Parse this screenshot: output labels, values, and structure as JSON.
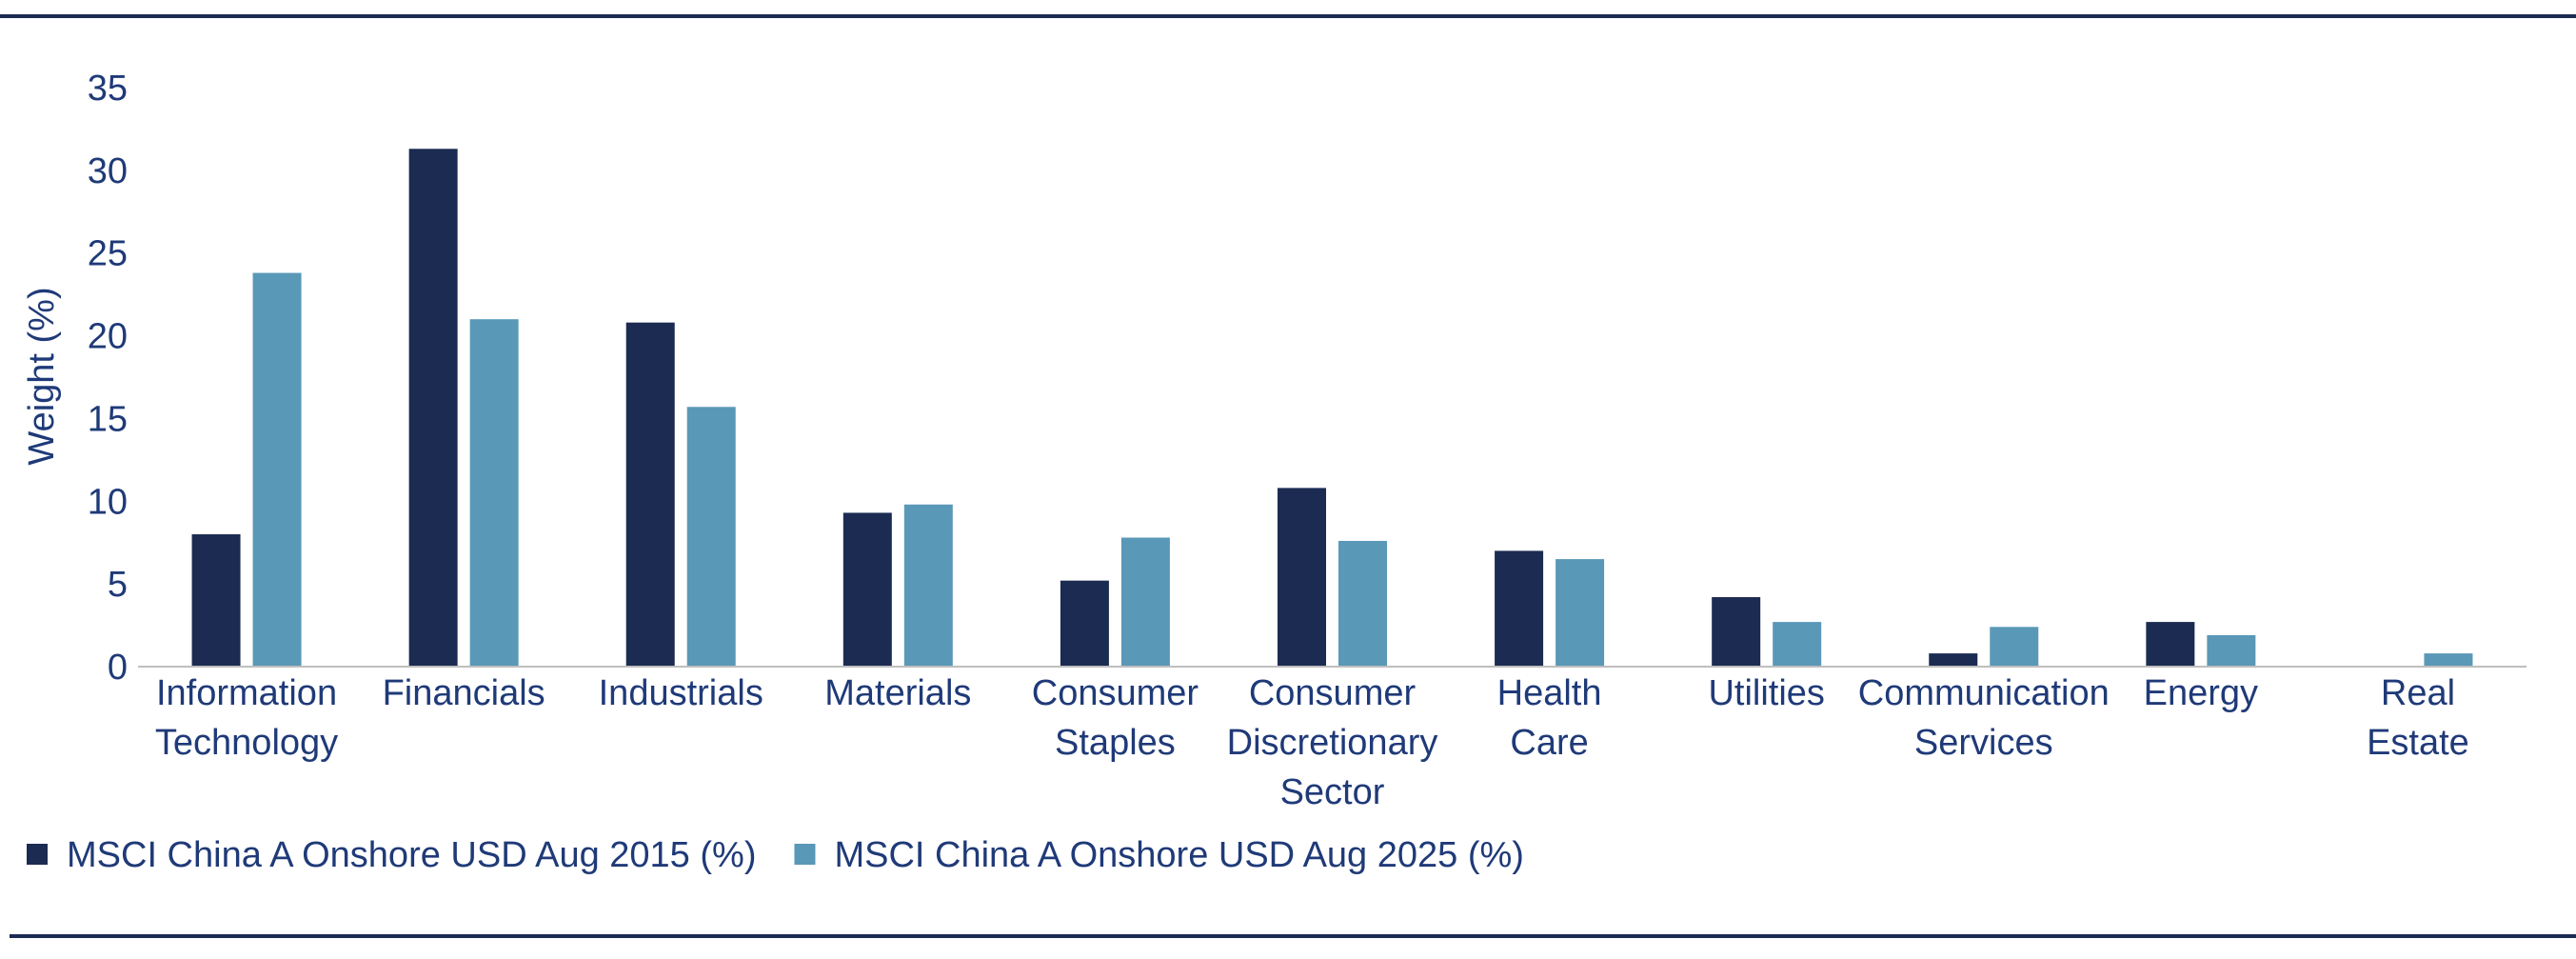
{
  "chart_data": {
    "type": "bar",
    "title": "",
    "xlabel": "",
    "ylabel": "Weight (%)",
    "ylim": [
      0,
      35
    ],
    "yticks": [
      "0",
      "5",
      "10",
      "15",
      "20",
      "25",
      "30",
      "35"
    ],
    "grid": false,
    "legend_position": "bottom-left",
    "categories": [
      [
        "Information",
        "Technology"
      ],
      [
        "Financials"
      ],
      [
        "Industrials"
      ],
      [
        "Materials"
      ],
      [
        "Consumer",
        "Staples"
      ],
      [
        "Consumer",
        "Discretionary",
        "Sector"
      ],
      [
        "Health",
        "Care"
      ],
      [
        "Utilities"
      ],
      [
        "Communication",
        "Services"
      ],
      [
        "Energy"
      ],
      [
        "Real",
        "Estate"
      ]
    ],
    "series": [
      {
        "name": "MSCI China A Onshore USD Aug 2015 (%)",
        "color": "#1c2b52",
        "values": [
          8.0,
          31.3,
          20.8,
          9.3,
          5.2,
          10.8,
          7.0,
          4.2,
          0.8,
          2.7,
          0.0
        ]
      },
      {
        "name": "MSCI China A Onshore USD Aug 2025 (%)",
        "color": "#5a98b8",
        "values": [
          23.8,
          21.0,
          15.7,
          9.8,
          7.8,
          7.6,
          6.5,
          2.7,
          2.4,
          1.9,
          0.8
        ]
      }
    ]
  },
  "colors": {
    "text": "#1f3a78",
    "rule": "#1c2b52",
    "axis": "#bfbfbf"
  }
}
